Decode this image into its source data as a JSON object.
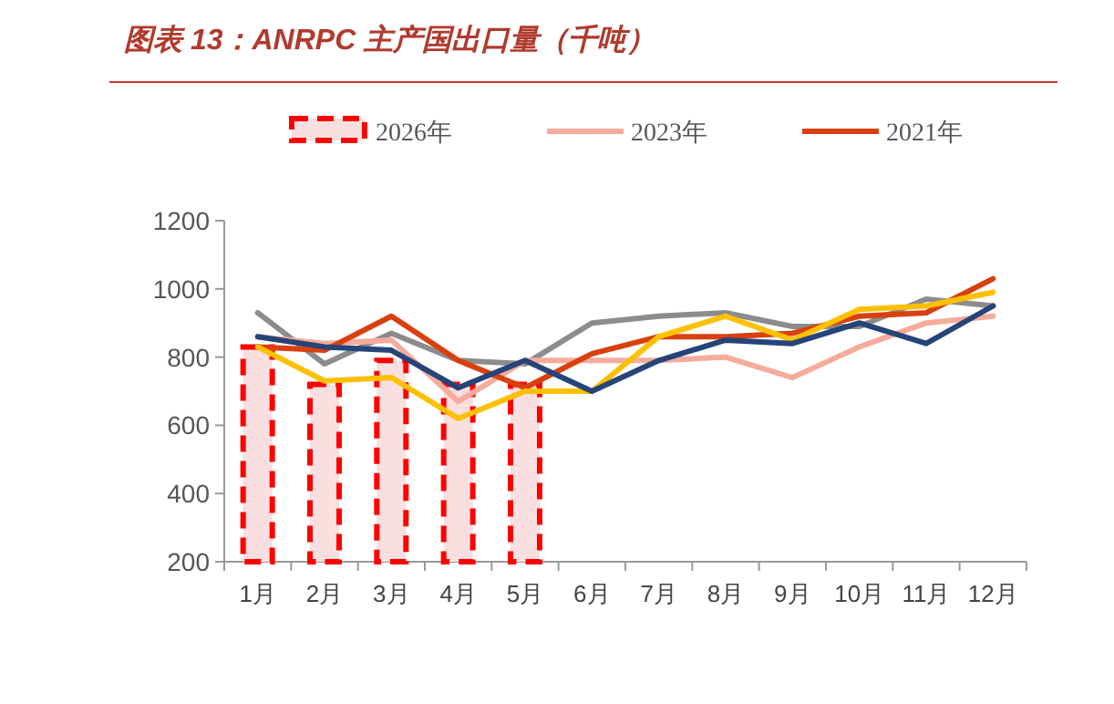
{
  "chart_data": {
    "type": "bar",
    "title": "图表 13：ANRPC 主产国出口量（千吨）",
    "categories": [
      "1月",
      "2月",
      "3月",
      "4月",
      "5月",
      "6月",
      "7月",
      "8月",
      "9月",
      "10月",
      "11月",
      "12月"
    ],
    "series": [
      {
        "name": "2026年",
        "color": "#f9dfe0",
        "values": [
          830,
          720,
          790,
          720,
          720,
          null,
          null,
          null,
          null,
          null,
          null,
          null
        ]
      },
      {
        "type": "line",
        "color": "#8c8c8c",
        "values": [
          930,
          780,
          870,
          790,
          780,
          900,
          920,
          930,
          890,
          890,
          970,
          950
        ]
      },
      {
        "name": "2023年",
        "type": "line",
        "color": "#f6ab9c",
        "values": [
          860,
          840,
          850,
          670,
          790,
          790,
          790,
          800,
          740,
          830,
          900,
          920
        ]
      },
      {
        "name": "2021年",
        "type": "line",
        "color": "#d9400f",
        "values": [
          830,
          820,
          920,
          790,
          710,
          810,
          860,
          860,
          870,
          920,
          930,
          1030
        ]
      },
      {
        "type": "line",
        "color": "#ffc000",
        "values": [
          830,
          730,
          740,
          620,
          700,
          700,
          860,
          920,
          850,
          940,
          950,
          990
        ]
      },
      {
        "type": "line",
        "color": "#264478",
        "values": [
          860,
          830,
          820,
          710,
          790,
          700,
          790,
          850,
          840,
          900,
          840,
          950
        ]
      }
    ],
    "ylim": [
      200,
      1200
    ],
    "yticks": [
      200,
      400,
      600,
      800,
      1000,
      1200
    ],
    "grid": false,
    "legend": "top"
  }
}
